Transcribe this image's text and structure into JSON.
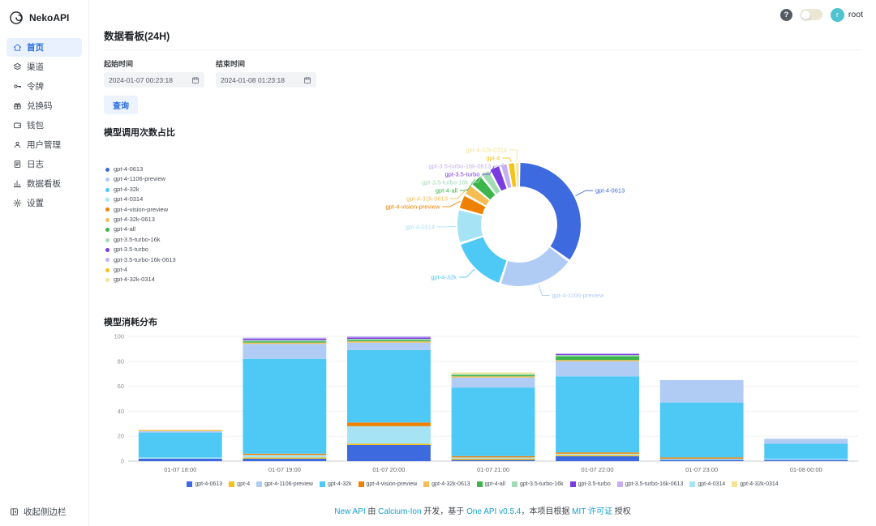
{
  "app": {
    "name": "NekoAPI"
  },
  "colors": {
    "primary": "#2a6ee0",
    "primary_light": "#e9f1ff",
    "link": "#18a0cb"
  },
  "header": {
    "help_icon": "?",
    "avatar_letter": "r",
    "user": "root"
  },
  "sidebar": {
    "items": [
      {
        "label": "首页",
        "icon": "home-icon",
        "active": true
      },
      {
        "label": "渠道",
        "icon": "channels-icon",
        "active": false
      },
      {
        "label": "令牌",
        "icon": "key-icon",
        "active": false
      },
      {
        "label": "兑换码",
        "icon": "gift-icon",
        "active": false
      },
      {
        "label": "钱包",
        "icon": "wallet-icon",
        "active": false
      },
      {
        "label": "用户管理",
        "icon": "user-icon",
        "active": false
      },
      {
        "label": "日志",
        "icon": "logs-icon",
        "active": false
      },
      {
        "label": "数据看板",
        "icon": "chart-icon",
        "active": false
      },
      {
        "label": "设置",
        "icon": "gear-icon",
        "active": false
      }
    ],
    "collapse_label": "收起侧边栏"
  },
  "main": {
    "title": "数据看板(24H)",
    "filters": {
      "start_label": "起始时间",
      "start_value": "2024-01-07 00:23:18",
      "end_label": "结束时间",
      "end_value": "2024-01-08 01:23:18",
      "query_label": "查询"
    }
  },
  "footer": {
    "segments": [
      {
        "text": "New API ",
        "link": true
      },
      {
        "text": "由 ",
        "link": false
      },
      {
        "text": "Calcium-Ion",
        "link": true
      },
      {
        "text": " 开发，基于 ",
        "link": false
      },
      {
        "text": "One API v0.5.4",
        "link": true
      },
      {
        "text": "，本项目根据 ",
        "link": false
      },
      {
        "text": "MIT 许可证",
        "link": true
      },
      {
        "text": " 授权",
        "link": false
      }
    ]
  },
  "chart_data": [
    {
      "type": "pie",
      "title": "模型调用次数占比",
      "legend_position": "left",
      "items": [
        {
          "label": "gpt-4-0613",
          "value": 35,
          "color": "#3e6ae0"
        },
        {
          "label": "gpt-4-1106-preview",
          "value": 20,
          "color": "#b0ccf5"
        },
        {
          "label": "gpt-4-32k",
          "value": 15,
          "color": "#4ec9f5"
        },
        {
          "label": "gpt-4-0314",
          "value": 9,
          "color": "#a6e4f5"
        },
        {
          "label": "gpt-4-vision-preview",
          "value": 4,
          "color": "#ee8200"
        },
        {
          "label": "gpt-4-32k-0613",
          "value": 3,
          "color": "#f6bd54"
        },
        {
          "label": "gpt-4-all",
          "value": 3.5,
          "color": "#3cb54a"
        },
        {
          "label": "gpt-3.5-turbo-16k",
          "value": 2.5,
          "color": "#a2dcb5"
        },
        {
          "label": "gpt-3.5-turbo",
          "value": 3,
          "color": "#7a3be0"
        },
        {
          "label": "gpt-3.5-turbo-16k-0613",
          "value": 2,
          "color": "#c5aff0"
        },
        {
          "label": "gpt-4",
          "value": 2,
          "color": "#f5c319"
        },
        {
          "label": "gpt-4-32k-0314",
          "value": 1,
          "color": "#f6e392"
        }
      ]
    },
    {
      "type": "bar",
      "title": "模型消耗分布",
      "stacked": true,
      "legend_position": "bottom",
      "ylim": [
        0,
        100
      ],
      "yticks": [
        0,
        20,
        40,
        60,
        80,
        100
      ],
      "categories": [
        "01-07 18:00",
        "01-07 19:00",
        "01-07 20:00",
        "01-07 21:00",
        "01-07 22:00",
        "01-07 23:00",
        "01-08 00:00"
      ],
      "series": [
        {
          "name": "gpt-4-0613",
          "color": "#3e6ae0",
          "values": [
            2,
            2,
            13,
            1,
            4,
            1,
            1
          ]
        },
        {
          "name": "gpt-4",
          "color": "#f5c319",
          "values": [
            0,
            1,
            1,
            1,
            1,
            0,
            0
          ]
        },
        {
          "name": "gpt-4-1106-preview",
          "color": "#b0ccf5",
          "values": [
            1,
            12,
            6,
            8,
            12,
            18,
            4
          ]
        },
        {
          "name": "gpt-4-32k",
          "color": "#4ec9f5",
          "values": [
            20,
            76,
            58,
            55,
            61,
            44,
            12
          ]
        },
        {
          "name": "gpt-4-vision-preview",
          "color": "#ee8200",
          "values": [
            0,
            1,
            3,
            1,
            1,
            1,
            0
          ]
        },
        {
          "name": "gpt-4-32k-0613",
          "color": "#f6bd54",
          "values": [
            1,
            1,
            1,
            1,
            1,
            0,
            0
          ]
        },
        {
          "name": "gpt-4-all",
          "color": "#3cb54a",
          "values": [
            0,
            1,
            1,
            1,
            3,
            0,
            0
          ]
        },
        {
          "name": "gpt-3.5-turbo-16k",
          "color": "#a2dcb5",
          "values": [
            0,
            1,
            1,
            1,
            1,
            0,
            0
          ]
        },
        {
          "name": "gpt-3.5-turbo",
          "color": "#7a3be0",
          "values": [
            0,
            1,
            1,
            0,
            1,
            0,
            0
          ]
        },
        {
          "name": "gpt-3.5-turbo-16k-0613",
          "color": "#c5aff0",
          "values": [
            0,
            1,
            1,
            0,
            0,
            0,
            0
          ]
        },
        {
          "name": "gpt-4-0314",
          "color": "#a6e4f5",
          "values": [
            1,
            2,
            14,
            1,
            1,
            1,
            1
          ]
        },
        {
          "name": "gpt-4-32k-0314",
          "color": "#f6e392",
          "values": [
            0,
            0,
            0,
            1,
            0,
            0,
            0
          ]
        }
      ],
      "stack_order": [
        "gpt-4-0613",
        "gpt-4",
        "gpt-4-0314",
        "gpt-4-vision-preview",
        "gpt-4-32k",
        "gpt-4-1106-preview",
        "gpt-4-32k-0613",
        "gpt-4-all",
        "gpt-3.5-turbo-16k",
        "gpt-3.5-turbo",
        "gpt-3.5-turbo-16k-0613",
        "gpt-4-32k-0314"
      ]
    }
  ]
}
